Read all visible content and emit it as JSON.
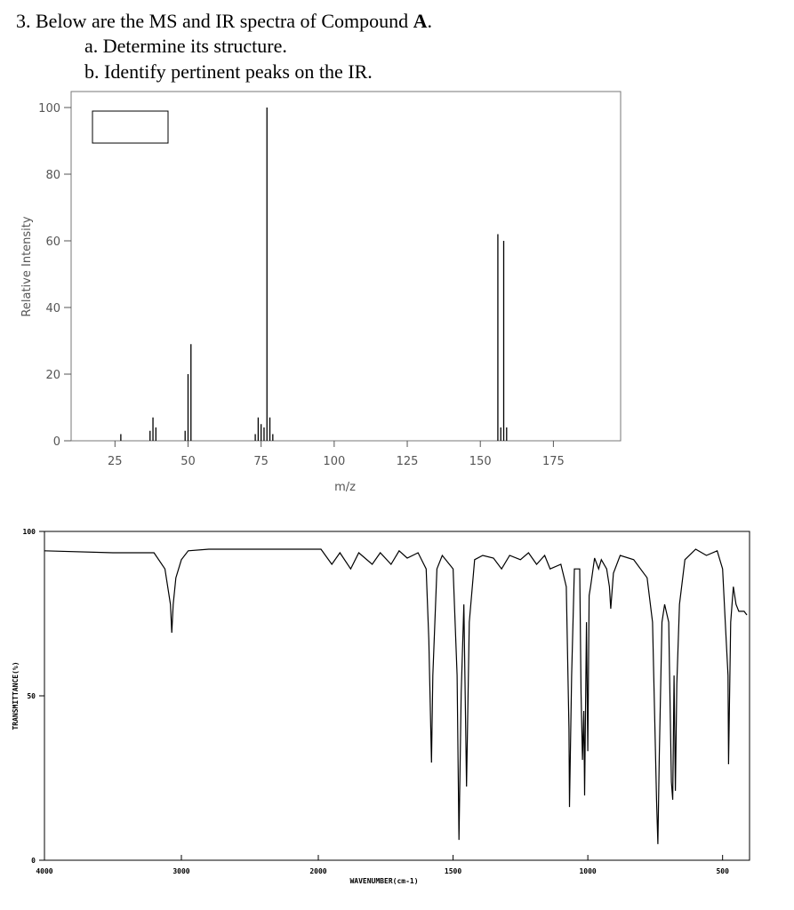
{
  "question": {
    "title_start": "3. Below are the MS and IR spectra of Compound ",
    "title_bold": "A",
    "title_end": ".",
    "items": [
      "a.  Determine its structure.",
      "b.  Identify pertinent peaks on the IR."
    ]
  },
  "chart_data": [
    {
      "type": "bar",
      "xlabel": "m/z",
      "ylabel": "Relative Intensity",
      "color": "#000000",
      "x": [
        27,
        37,
        38,
        39,
        49,
        50,
        51,
        73,
        74,
        75,
        76,
        77,
        78,
        79,
        156,
        157,
        158,
        159
      ],
      "values": [
        2,
        3,
        7,
        4,
        3,
        20,
        29,
        2,
        7,
        5,
        4,
        100,
        7,
        2,
        62,
        4,
        60,
        4
      ],
      "xlim": [
        10,
        198
      ],
      "ylim": [
        0,
        100
      ],
      "xticks": [
        25,
        50,
        75,
        100,
        125,
        150,
        175
      ],
      "yticks": [
        0,
        20,
        40,
        60,
        80,
        100
      ]
    },
    {
      "type": "line",
      "xlabel": "WAVENUMBER(cm-1)",
      "ylabel": "TRANSMITTANCE(%)",
      "color": "#000000",
      "x_scale_change": 2000,
      "x": [
        4000,
        3500,
        3200,
        3120,
        3080,
        3070,
        3060,
        3040,
        3000,
        2950,
        2800,
        2200,
        2050,
        1990,
        1950,
        1920,
        1880,
        1850,
        1800,
        1770,
        1730,
        1700,
        1670,
        1630,
        1600,
        1590,
        1580,
        1575,
        1560,
        1540,
        1500,
        1485,
        1478,
        1470,
        1460,
        1450,
        1440,
        1420,
        1390,
        1350,
        1320,
        1290,
        1250,
        1220,
        1190,
        1160,
        1140,
        1100,
        1080,
        1070,
        1068,
        1060,
        1050,
        1030,
        1025,
        1020,
        1015,
        1012,
        1005,
        1000,
        995,
        990,
        975,
        960,
        950,
        930,
        920,
        915,
        905,
        880,
        830,
        780,
        760,
        745,
        740,
        735,
        725,
        715,
        700,
        690,
        685,
        680,
        675,
        670,
        660,
        640,
        600,
        560,
        520,
        500,
        490,
        480,
        478,
        470,
        460,
        450,
        440,
        420,
        410
      ],
      "values": [
        94.1,
        93.5,
        93.5,
        88.6,
        77.8,
        69.2,
        77.8,
        85.9,
        91.4,
        94.1,
        94.6,
        94.6,
        94.6,
        94.6,
        90,
        93.5,
        88.6,
        93.5,
        90,
        93.5,
        90,
        94.1,
        91.9,
        93.5,
        88.6,
        67,
        29.7,
        56.2,
        88.6,
        92.7,
        88.6,
        56.2,
        6.2,
        50.8,
        77.8,
        22.4,
        72.4,
        91.4,
        92.7,
        91.9,
        88.6,
        92.7,
        91.4,
        93.5,
        90,
        92.7,
        88.6,
        90,
        83.2,
        40,
        16.2,
        56.2,
        88.6,
        88.6,
        50.8,
        30.5,
        45.4,
        19.7,
        72.4,
        33.2,
        80.5,
        83.2,
        91.9,
        88.6,
        91.4,
        88.6,
        83.2,
        76.5,
        87.3,
        92.7,
        91.4,
        85.9,
        72.4,
        18.4,
        4.9,
        31.9,
        72.4,
        77.8,
        72.4,
        23.8,
        18.4,
        56.2,
        21.1,
        53.5,
        77.8,
        91.4,
        94.6,
        92.7,
        94.1,
        88.6,
        72.4,
        56.2,
        29.2,
        72.4,
        83.2,
        77.8,
        75.7,
        75.7,
        74.6
      ],
      "xlim": [
        4000,
        400
      ],
      "ylim": [
        0,
        100
      ],
      "xticks": [
        4000,
        3000,
        2000,
        1500,
        1000,
        500
      ],
      "yticks": [
        0,
        50,
        100
      ]
    }
  ]
}
